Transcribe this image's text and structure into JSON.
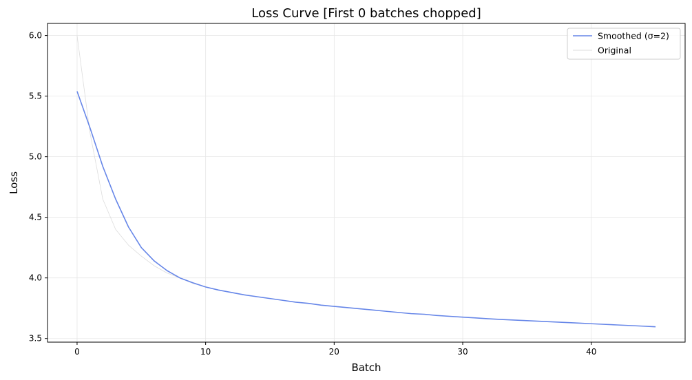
{
  "chart_data": {
    "type": "line",
    "title": "Loss Curve [First 0 batches chopped]",
    "xlabel": "Batch",
    "ylabel": "Loss",
    "xlim": [
      -2.3,
      47.3
    ],
    "ylim": [
      3.47,
      6.1
    ],
    "xticks": [
      0,
      10,
      20,
      30,
      40
    ],
    "xtick_labels": [
      "0",
      "10",
      "20",
      "30",
      "40"
    ],
    "yticks": [
      3.5,
      4.0,
      4.5,
      5.0,
      5.5,
      6.0
    ],
    "ytick_labels": [
      "3.5",
      "4.0",
      "4.5",
      "5.0",
      "5.5",
      "6.0"
    ],
    "grid": true,
    "legend_position": "top-right",
    "series": [
      {
        "name": "Smoothed (σ=2)",
        "color": "#6686e8",
        "x": [
          0,
          1,
          2,
          3,
          4,
          5,
          6,
          7,
          8,
          9,
          10,
          11,
          12,
          13,
          14,
          15,
          16,
          17,
          18,
          19,
          20,
          21,
          22,
          23,
          24,
          25,
          26,
          27,
          28,
          29,
          30,
          31,
          32,
          33,
          34,
          35,
          36,
          37,
          38,
          39,
          40,
          41,
          42,
          43,
          44,
          45
        ],
        "y": [
          5.54,
          5.24,
          4.92,
          4.65,
          4.42,
          4.25,
          4.14,
          4.06,
          4.0,
          3.96,
          3.925,
          3.9,
          3.88,
          3.86,
          3.845,
          3.83,
          3.815,
          3.8,
          3.79,
          3.775,
          3.765,
          3.755,
          3.745,
          3.735,
          3.725,
          3.715,
          3.705,
          3.7,
          3.69,
          3.683,
          3.676,
          3.67,
          3.663,
          3.657,
          3.652,
          3.647,
          3.642,
          3.637,
          3.632,
          3.627,
          3.622,
          3.617,
          3.612,
          3.607,
          3.602,
          3.597
        ]
      },
      {
        "name": "Original",
        "color": "#dcdcdc",
        "x": [
          0,
          1,
          2,
          3,
          4,
          5,
          6,
          7,
          8,
          9,
          10,
          11,
          12,
          13,
          14,
          15,
          16,
          17,
          18,
          19,
          20,
          21,
          22,
          23,
          24,
          25,
          26,
          27,
          28,
          29,
          30,
          31,
          32,
          33,
          34,
          35,
          36,
          37,
          38,
          39,
          40,
          41,
          42,
          43,
          44,
          45
        ],
        "y": [
          6.0,
          5.2,
          4.65,
          4.4,
          4.27,
          4.18,
          4.1,
          4.04,
          4.0,
          3.955,
          3.925,
          3.9,
          3.88,
          3.86,
          3.845,
          3.83,
          3.815,
          3.8,
          3.79,
          3.775,
          3.765,
          3.755,
          3.745,
          3.735,
          3.725,
          3.715,
          3.705,
          3.7,
          3.69,
          3.683,
          3.676,
          3.67,
          3.663,
          3.657,
          3.652,
          3.647,
          3.642,
          3.637,
          3.632,
          3.627,
          3.622,
          3.617,
          3.612,
          3.607,
          3.602,
          3.597
        ]
      }
    ]
  }
}
